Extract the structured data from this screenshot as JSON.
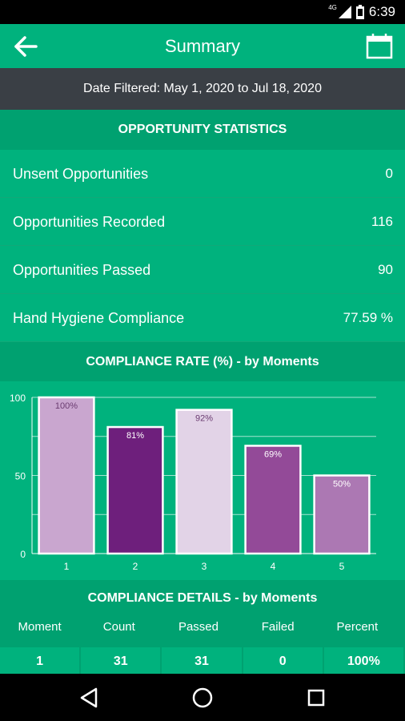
{
  "status_bar": {
    "network": "4G",
    "time": "6:39"
  },
  "app_bar": {
    "title": "Summary",
    "back_icon": "arrow-left-icon",
    "calendar_icon": "calendar-icon"
  },
  "filter": {
    "text": "Date Filtered: May 1, 2020 to Jul 18, 2020"
  },
  "opportunity": {
    "header": "OPPORTUNITY STATISTICS",
    "rows": [
      {
        "label": "Unsent Opportunities",
        "value": "0"
      },
      {
        "label": "Opportunities Recorded",
        "value": "116"
      },
      {
        "label": "Opportunities Passed",
        "value": "90"
      },
      {
        "label": "Hand Hygiene Compliance",
        "value": "77.59 %"
      }
    ]
  },
  "compliance_chart": {
    "header": "COMPLIANCE RATE (%) - by Moments"
  },
  "chart_data": {
    "type": "bar",
    "categories": [
      "1",
      "2",
      "3",
      "4",
      "5"
    ],
    "values": [
      100,
      81,
      92,
      69,
      50
    ],
    "data_labels": [
      "100%",
      "81%",
      "92%",
      "69%",
      "50%"
    ],
    "bar_colors": [
      "#c9a6cf",
      "#6e1f7c",
      "#e2d3e7",
      "#934a98",
      "#ac78b3"
    ],
    "label_colors": [
      "#6a3b70",
      "#ffffff",
      "#6a3b70",
      "#ffffff",
      "#ffffff"
    ],
    "y_ticks": [
      0,
      50,
      100
    ],
    "ylim": [
      0,
      100
    ],
    "title": "",
    "xlabel": "",
    "ylabel": "",
    "grid": true
  },
  "details": {
    "header": "COMPLIANCE DETAILS - by Moments",
    "columns": [
      "Moment",
      "Count",
      "Passed",
      "Failed",
      "Percent"
    ],
    "rows": [
      [
        "1",
        "31",
        "31",
        "0",
        "100%"
      ]
    ]
  },
  "colors": {
    "primary": "#00b27d",
    "primary_dark": "#00a170",
    "filter_bg": "#3a3f45"
  },
  "nav": {
    "back": "nav-back-icon",
    "home": "nav-home-icon",
    "recents": "nav-recents-icon"
  }
}
